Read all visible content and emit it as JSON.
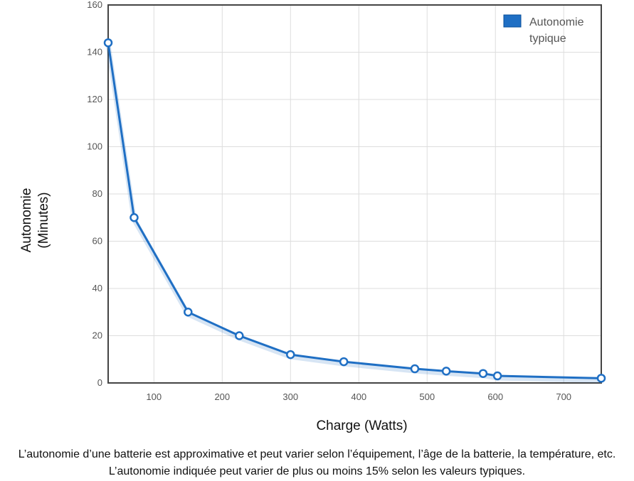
{
  "chart_data": {
    "type": "line",
    "xlabel": "Charge (Watts)",
    "ylabel_lines": [
      "Autonomie",
      "(Minutes)"
    ],
    "xlim": [
      33,
      755
    ],
    "ylim": [
      0,
      160
    ],
    "x_ticks": [
      100,
      200,
      300,
      400,
      500,
      600,
      700
    ],
    "y_ticks": [
      0,
      20,
      40,
      60,
      80,
      100,
      120,
      140,
      160
    ],
    "grid": true,
    "legend_position": "top-right",
    "legend_lines": [
      "Autonomie",
      "typique"
    ],
    "series": [
      {
        "name": "Autonomie typique",
        "color": "#1f6fc4",
        "x": [
          33,
          71,
          150,
          225,
          300,
          378,
          482,
          528,
          582,
          603,
          755
        ],
        "y": [
          144,
          70,
          30,
          20,
          12,
          9,
          6,
          5,
          4,
          3,
          2
        ]
      }
    ]
  },
  "footnote": "L’autonomie d’une batterie est approximative et peut varier selon l’équipement, l’âge de la batterie, la température, etc. L’autonomie indiquée peut varier de plus ou moins 15% selon les valeurs typiques."
}
